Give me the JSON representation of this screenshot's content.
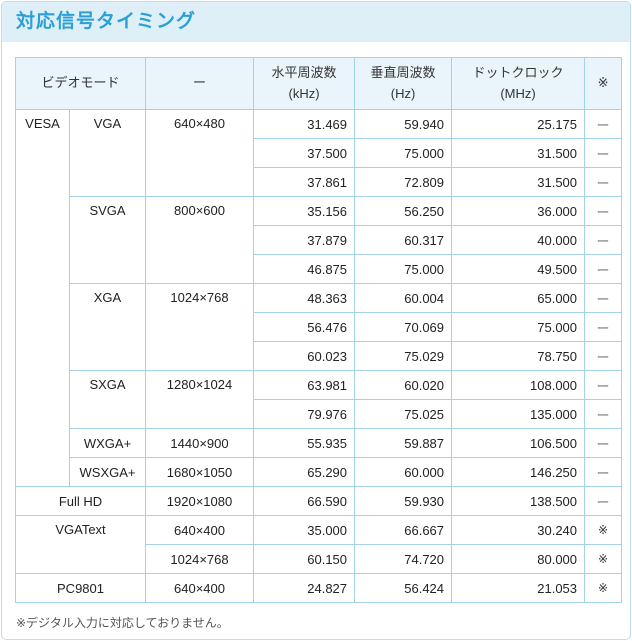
{
  "page_title": "対応信号タイミング",
  "footnote": "※デジタル入力に対応しておりません。",
  "colors": {
    "title_text": "#2aa0d6",
    "title_bg": "#deeff8",
    "outer_border": "#bcdeee",
    "table_border": "#a6d2e8",
    "header_bg": "#e9f4fb",
    "cell_text": "#222222",
    "dash_text": "#777777",
    "footnote_text": "#555555"
  },
  "table": {
    "header": [
      {
        "label": "ビデオモード",
        "sub": ""
      },
      {
        "label": "ー",
        "sub": ""
      },
      {
        "label": "水平周波数",
        "sub": "(kHz)"
      },
      {
        "label": "垂直周波数",
        "sub": "(Hz)"
      },
      {
        "label": "ドットクロック",
        "sub": "(MHz)"
      },
      {
        "label": "※",
        "sub": ""
      }
    ],
    "rows": [
      [
        {
          "t": "VESA",
          "rs": 13
        },
        {
          "t": "VGA",
          "rs": 3
        },
        {
          "t": "640×480",
          "rs": 3
        },
        {
          "t": "31.469",
          "a": "r"
        },
        {
          "t": "59.940",
          "a": "r"
        },
        {
          "t": "25.175",
          "a": "r"
        },
        {
          "t": "ー",
          "k": "dash"
        }
      ],
      [
        {
          "t": "37.500",
          "a": "r"
        },
        {
          "t": "75.000",
          "a": "r"
        },
        {
          "t": "31.500",
          "a": "r"
        },
        {
          "t": "ー",
          "k": "dash"
        }
      ],
      [
        {
          "t": "37.861",
          "a": "r"
        },
        {
          "t": "72.809",
          "a": "r"
        },
        {
          "t": "31.500",
          "a": "r"
        },
        {
          "t": "ー",
          "k": "dash"
        }
      ],
      [
        {
          "t": "SVGA",
          "rs": 3
        },
        {
          "t": "800×600",
          "rs": 3
        },
        {
          "t": "35.156",
          "a": "r"
        },
        {
          "t": "56.250",
          "a": "r"
        },
        {
          "t": "36.000",
          "a": "r"
        },
        {
          "t": "ー",
          "k": "dash"
        }
      ],
      [
        {
          "t": "37.879",
          "a": "r"
        },
        {
          "t": "60.317",
          "a": "r"
        },
        {
          "t": "40.000",
          "a": "r"
        },
        {
          "t": "ー",
          "k": "dash"
        }
      ],
      [
        {
          "t": "46.875",
          "a": "r"
        },
        {
          "t": "75.000",
          "a": "r"
        },
        {
          "t": "49.500",
          "a": "r"
        },
        {
          "t": "ー",
          "k": "dash"
        }
      ],
      [
        {
          "t": "XGA",
          "rs": 3
        },
        {
          "t": "1024×768",
          "rs": 3
        },
        {
          "t": "48.363",
          "a": "r"
        },
        {
          "t": "60.004",
          "a": "r"
        },
        {
          "t": "65.000",
          "a": "r"
        },
        {
          "t": "ー",
          "k": "dash"
        }
      ],
      [
        {
          "t": "56.476",
          "a": "r"
        },
        {
          "t": "70.069",
          "a": "r"
        },
        {
          "t": "75.000",
          "a": "r"
        },
        {
          "t": "ー",
          "k": "dash"
        }
      ],
      [
        {
          "t": "60.023",
          "a": "r"
        },
        {
          "t": "75.029",
          "a": "r"
        },
        {
          "t": "78.750",
          "a": "r"
        },
        {
          "t": "ー",
          "k": "dash"
        }
      ],
      [
        {
          "t": "SXGA",
          "rs": 2
        },
        {
          "t": "1280×1024",
          "rs": 2
        },
        {
          "t": "63.981",
          "a": "r"
        },
        {
          "t": "60.020",
          "a": "r"
        },
        {
          "t": "108.000",
          "a": "r"
        },
        {
          "t": "ー",
          "k": "dash"
        }
      ],
      [
        {
          "t": "79.976",
          "a": "r"
        },
        {
          "t": "75.025",
          "a": "r"
        },
        {
          "t": "135.000",
          "a": "r"
        },
        {
          "t": "ー",
          "k": "dash"
        }
      ],
      [
        {
          "t": "WXGA+"
        },
        {
          "t": "1440×900"
        },
        {
          "t": "55.935",
          "a": "r"
        },
        {
          "t": "59.887",
          "a": "r"
        },
        {
          "t": "106.500",
          "a": "r"
        },
        {
          "t": "ー",
          "k": "dash"
        }
      ],
      [
        {
          "t": "WSXGA+"
        },
        {
          "t": "1680×1050"
        },
        {
          "t": "65.290",
          "a": "r"
        },
        {
          "t": "60.000",
          "a": "r"
        },
        {
          "t": "146.250",
          "a": "r"
        },
        {
          "t": "ー",
          "k": "dash"
        }
      ],
      [
        {
          "t": "Full HD",
          "cs": 2
        },
        {
          "t": "1920×1080"
        },
        {
          "t": "66.590",
          "a": "r"
        },
        {
          "t": "59.930",
          "a": "r"
        },
        {
          "t": "138.500",
          "a": "r"
        },
        {
          "t": "ー",
          "k": "dash"
        }
      ],
      [
        {
          "t": "VGAText",
          "cs": 2,
          "rs": 2
        },
        {
          "t": "640×400"
        },
        {
          "t": "35.000",
          "a": "r"
        },
        {
          "t": "66.667",
          "a": "r"
        },
        {
          "t": "30.240",
          "a": "r"
        },
        {
          "t": "※",
          "k": "mark"
        }
      ],
      [
        {
          "t": "1024×768"
        },
        {
          "t": "60.150",
          "a": "r"
        },
        {
          "t": "74.720",
          "a": "r"
        },
        {
          "t": "80.000",
          "a": "r"
        },
        {
          "t": "※",
          "k": "mark"
        }
      ],
      [
        {
          "t": "PC9801",
          "cs": 2
        },
        {
          "t": "640×400"
        },
        {
          "t": "24.827",
          "a": "r"
        },
        {
          "t": "56.424",
          "a": "r"
        },
        {
          "t": "21.053",
          "a": "r"
        },
        {
          "t": "※",
          "k": "mark"
        }
      ]
    ]
  }
}
